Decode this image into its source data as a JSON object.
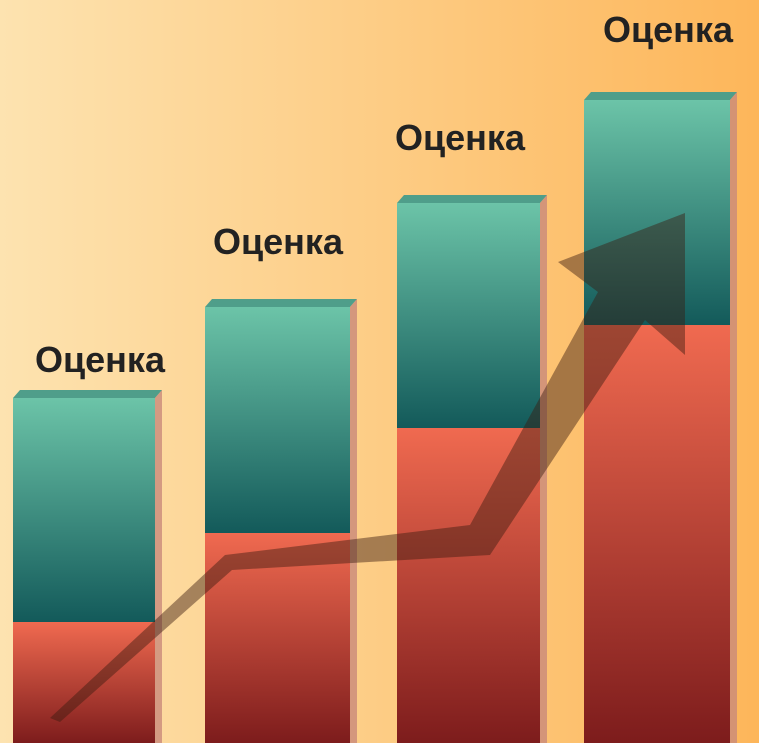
{
  "labels": [
    "Оценка",
    "Оценка",
    "Оценка",
    "Оценка"
  ]
}
